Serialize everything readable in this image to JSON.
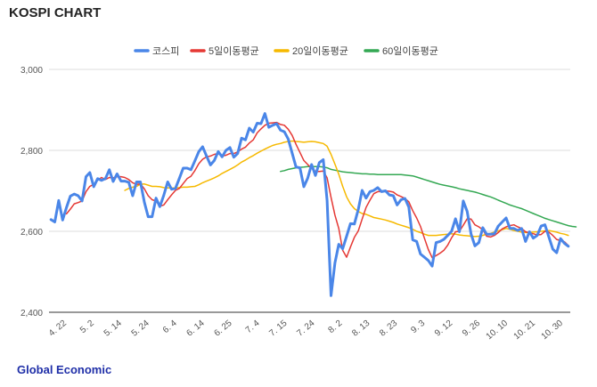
{
  "page": {
    "title": "KOSPI CHART",
    "footer": "Global Economic"
  },
  "colors": {
    "kospi": "#4a86e8",
    "ma5": "#e53935",
    "ma20": "#f6b900",
    "ma60": "#34a853"
  },
  "chart_data": {
    "type": "line",
    "title": "KOSPI CHART",
    "ylim": [
      2400,
      3000
    ],
    "y_ticks": [
      "2,400",
      "2,600",
      "2,800",
      "3,000"
    ],
    "grid": true,
    "legend_position": "top",
    "x_tick_labels": [
      "4. 22",
      "5. 2",
      "5. 14",
      "5. 24",
      "6. 4",
      "6. 14",
      "6. 25",
      "7. 4",
      "7. 15",
      "7. 24",
      "8. 2",
      "8. 13",
      "8. 23",
      "9. 3",
      "9. 12",
      "9. 26",
      "10. 10",
      "10. 21",
      "10. 30"
    ],
    "series": [
      {
        "name": "코스피",
        "values": [
          2629,
          2623,
          2676,
          2628,
          2659,
          2687,
          2692,
          2688,
          2675,
          2735,
          2745,
          2710,
          2730,
          2726,
          2730,
          2752,
          2723,
          2742,
          2724,
          2724,
          2721,
          2688,
          2722,
          2722,
          2672,
          2636,
          2636,
          2682,
          2661,
          2689,
          2722,
          2704,
          2706,
          2731,
          2756,
          2756,
          2752,
          2774,
          2797,
          2809,
          2786,
          2764,
          2775,
          2797,
          2784,
          2800,
          2807,
          2783,
          2792,
          2830,
          2826,
          2855,
          2845,
          2867,
          2866,
          2891,
          2857,
          2862,
          2866,
          2850,
          2846,
          2828,
          2793,
          2759,
          2757,
          2710,
          2731,
          2765,
          2738,
          2770,
          2777,
          2676,
          2441,
          2522,
          2568,
          2557,
          2588,
          2619,
          2618,
          2654,
          2701,
          2682,
          2698,
          2701,
          2708,
          2698,
          2700,
          2690,
          2688,
          2665,
          2678,
          2681,
          2660,
          2579,
          2575,
          2544,
          2536,
          2528,
          2514,
          2572,
          2575,
          2580,
          2590,
          2600,
          2631,
          2599,
          2675,
          2649,
          2593,
          2564,
          2572,
          2609,
          2593,
          2593,
          2594,
          2613,
          2623,
          2633,
          2607,
          2607,
          2602,
          2607,
          2575,
          2599,
          2583,
          2590,
          2613,
          2616,
          2586,
          2556,
          2547,
          2582,
          2570,
          2563
        ]
      },
      {
        "name": "5일이동평균",
        "values": [
          null,
          null,
          null,
          null,
          2643,
          2655,
          2668,
          2671,
          2675,
          2698,
          2711,
          2716,
          2726,
          2733,
          2728,
          2733,
          2732,
          2735,
          2735,
          2733,
          2728,
          2720,
          2716,
          2717,
          2705,
          2688,
          2678,
          2675,
          2662,
          2665,
          2678,
          2690,
          2701,
          2706,
          2718,
          2730,
          2736,
          2750,
          2767,
          2778,
          2784,
          2786,
          2790,
          2792,
          2786,
          2788,
          2792,
          2792,
          2796,
          2803,
          2808,
          2818,
          2826,
          2843,
          2853,
          2862,
          2867,
          2868,
          2869,
          2864,
          2862,
          2852,
          2837,
          2815,
          2795,
          2775,
          2765,
          2756,
          2748,
          2748,
          2749,
          2732,
          2684,
          2640,
          2607,
          2553,
          2536,
          2561,
          2585,
          2601,
          2630,
          2659,
          2677,
          2693,
          2698,
          2698,
          2700,
          2699,
          2697,
          2690,
          2686,
          2681,
          2673,
          2651,
          2633,
          2612,
          2583,
          2555,
          2535,
          2540,
          2546,
          2553,
          2566,
          2584,
          2599,
          2600,
          2615,
          2631,
          2630,
          2616,
          2611,
          2604,
          2588,
          2586,
          2590,
          2597,
          2606,
          2611,
          2614,
          2616,
          2611,
          2607,
          2599,
          2596,
          2594,
          2591,
          2592,
          2600,
          2598,
          2590,
          2580,
          2577,
          2574,
          2565
        ]
      },
      {
        "name": "20일이동평균",
        "values": [
          null,
          null,
          null,
          null,
          null,
          null,
          null,
          null,
          null,
          null,
          null,
          null,
          null,
          null,
          null,
          null,
          null,
          null,
          null,
          2701,
          2706,
          2709,
          2711,
          2716,
          2717,
          2714,
          2711,
          2711,
          2710,
          2708,
          2707,
          2707,
          2707,
          2708,
          2709,
          2709,
          2710,
          2711,
          2715,
          2720,
          2724,
          2728,
          2732,
          2737,
          2743,
          2748,
          2753,
          2758,
          2764,
          2771,
          2776,
          2782,
          2787,
          2793,
          2798,
          2803,
          2808,
          2812,
          2815,
          2817,
          2820,
          2822,
          2823,
          2822,
          2821,
          2820,
          2821,
          2822,
          2821,
          2819,
          2817,
          2810,
          2790,
          2766,
          2741,
          2711,
          2685,
          2668,
          2656,
          2649,
          2644,
          2642,
          2638,
          2634,
          2632,
          2630,
          2628,
          2625,
          2622,
          2618,
          2615,
          2612,
          2609,
          2605,
          2600,
          2597,
          2593,
          2590,
          2590,
          2590,
          2591,
          2592,
          2593,
          2594,
          2593,
          2591,
          2590,
          2589,
          2588,
          2587,
          2588,
          2590,
          2593,
          2595,
          2598,
          2601,
          2604,
          2607,
          2605,
          2602,
          2600,
          2598,
          2597,
          2597,
          2598,
          2599,
          2600,
          2601,
          2602,
          2600,
          2598,
          2595,
          2593,
          2590
        ]
      },
      {
        "name": "60일이동평균",
        "values": [
          null,
          null,
          null,
          null,
          null,
          null,
          null,
          null,
          null,
          null,
          null,
          null,
          null,
          null,
          null,
          null,
          null,
          null,
          null,
          null,
          null,
          null,
          null,
          null,
          null,
          null,
          null,
          null,
          null,
          null,
          null,
          null,
          null,
          null,
          null,
          null,
          null,
          null,
          null,
          null,
          null,
          null,
          null,
          null,
          null,
          null,
          null,
          null,
          null,
          null,
          null,
          null,
          null,
          null,
          null,
          null,
          null,
          null,
          null,
          2748,
          2750,
          2753,
          2755,
          2757,
          2758,
          2759,
          2760,
          2760,
          2760,
          2760,
          2759,
          2757,
          2753,
          2751,
          2749,
          2747,
          2746,
          2745,
          2744,
          2743,
          2742,
          2742,
          2741,
          2741,
          2740,
          2740,
          2740,
          2740,
          2740,
          2740,
          2740,
          2739,
          2738,
          2737,
          2734,
          2731,
          2728,
          2725,
          2722,
          2719,
          2716,
          2714,
          2712,
          2710,
          2708,
          2705,
          2703,
          2701,
          2699,
          2697,
          2694,
          2691,
          2688,
          2685,
          2681,
          2677,
          2673,
          2669,
          2665,
          2662,
          2659,
          2656,
          2652,
          2648,
          2644,
          2640,
          2636,
          2632,
          2629,
          2626,
          2623,
          2620,
          2617,
          2614,
          2612,
          2611
        ]
      }
    ]
  }
}
